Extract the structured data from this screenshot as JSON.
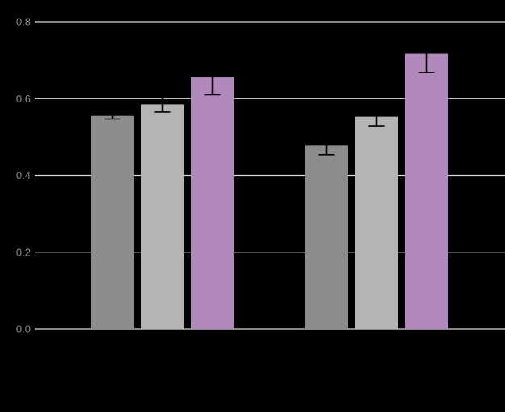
{
  "chart_data": {
    "type": "bar",
    "title": "",
    "xlabel": "",
    "ylabel": "",
    "ylim": [
      0,
      0.8
    ],
    "yticks": [
      "0.0",
      "0.2",
      "0.4",
      "0.6",
      "0.8"
    ],
    "grid": true,
    "groups": [
      {
        "bars": [
          {
            "value": 0.555,
            "err_low": 0.547,
            "err_high": 0.563,
            "color": "#8c8c8c"
          },
          {
            "value": 0.585,
            "err_low": 0.565,
            "err_high": 0.605,
            "color": "#b4b4b4"
          },
          {
            "value": 0.655,
            "err_low": 0.61,
            "err_high": 0.7,
            "color": "#b088bc"
          }
        ]
      },
      {
        "bars": [
          {
            "value": 0.478,
            "err_low": 0.454,
            "err_high": 0.502,
            "color": "#8c8c8c"
          },
          {
            "value": 0.553,
            "err_low": 0.529,
            "err_high": 0.577,
            "color": "#b4b4b4"
          },
          {
            "value": 0.717,
            "err_low": 0.668,
            "err_high": 0.766,
            "color": "#b088bc"
          }
        ]
      }
    ],
    "colors": {
      "background": "#000000",
      "grid": "#d9d9d9",
      "tick_text": "#8c8c8c",
      "error_bar": "#000000"
    }
  }
}
